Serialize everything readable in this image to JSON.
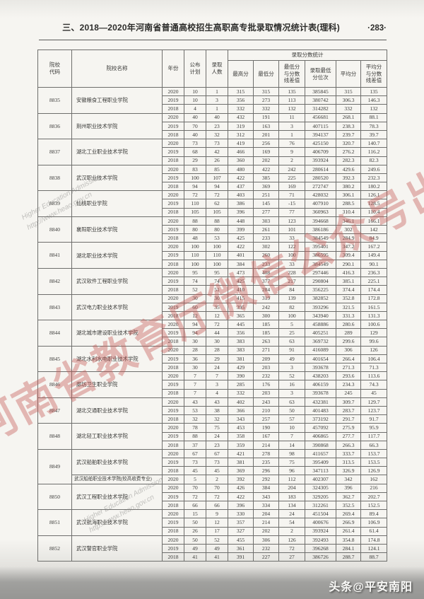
{
  "page": {
    "title": "三、2018—2020年河南省普通高校招生高职高专批录取情况统计表(理科)",
    "page_number": "·283·"
  },
  "colors": {
    "paper": "#f6f5f1",
    "table_border": "#474745",
    "red_watermark": "#c65856",
    "footer_band": "#969694"
  },
  "watermarks": {
    "red_text": "河南省教育厅微信公众号出品",
    "gray_line1": "Higher Education Admission",
    "gray_line2": "http://www.heao.gov.cn",
    "footer_credit": "头条@平安南阳"
  },
  "table": {
    "headers": {
      "code": "院校\n代码",
      "name": "院校名称",
      "year": "年份",
      "plan": "公布\n计划",
      "admitted": "录取\n人数",
      "stats_group": "录取分数统计",
      "max": "最高分",
      "min": "最低分",
      "min_diff": "最低分\n与分数\n线差值",
      "rank": "录取最低\n分位次",
      "avg": "平均分",
      "avg_diff": "平均分\n与分数\n线差值"
    },
    "groups": [
      {
        "code": "8835",
        "subgroups": [
          {
            "name": "安徽粮食工程职业学院",
            "rows": [
              [
                "2020",
                "10",
                "1",
                "315",
                "315",
                "135",
                "385845",
                "315",
                "135"
              ],
              [
                "2019",
                "10",
                "3",
                "356",
                "273",
                "113",
                "380742",
                "306.3",
                "146.3"
              ],
              [
                "2018",
                "4",
                "1",
                "332",
                "332",
                "132",
                "314282",
                "332",
                "132"
              ]
            ]
          }
        ]
      },
      {
        "code": "8836",
        "subgroups": [
          {
            "name": "荆州职业技术学院",
            "rows": [
              [
                "2020",
                "40",
                "40",
                "432",
                "191",
                "11",
                "456681",
                "268.1",
                "88.1"
              ],
              [
                "2019",
                "70",
                "23",
                "319",
                "163",
                "3",
                "407115",
                "238.3",
                "78.3"
              ],
              [
                "2018",
                "40",
                "32",
                "312",
                "201",
                "1",
                "394137",
                "239.7",
                "39.7"
              ]
            ]
          }
        ]
      },
      {
        "code": "8837",
        "subgroups": [
          {
            "name": "湖北工业职业技术学院",
            "rows": [
              [
                "2020",
                "73",
                "73",
                "419",
                "256",
                "76",
                "425150",
                "320.7",
                "140.7"
              ],
              [
                "2019",
                "68",
                "42",
                "466",
                "169",
                "9",
                "406709",
                "276.2",
                "116.2"
              ],
              [
                "2018",
                "29",
                "26",
                "360",
                "202",
                "2",
                "393924",
                "282.3",
                "82.3"
              ]
            ]
          }
        ]
      },
      {
        "code": "8838",
        "subgroups": [
          {
            "name": "武汉职业技术学院",
            "rows": [
              [
                "2020",
                "83",
                "85",
                "480",
                "422",
                "242",
                "280614",
                "429.6",
                "249.6"
              ],
              [
                "2019",
                "100",
                "107",
                "422",
                "385",
                "225",
                "280520",
                "392.3",
                "232.3"
              ],
              [
                "2018",
                "94",
                "94",
                "437",
                "369",
                "169",
                "272747",
                "380.2",
                "180.2"
              ]
            ]
          }
        ]
      },
      {
        "code": "8839",
        "subgroups": [
          {
            "name": "仙桃职业学院",
            "rows": [
              [
                "2020",
                "72",
                "72",
                "403",
                "251",
                "71",
                "428032",
                "306.1",
                "126.1"
              ],
              [
                "2019",
                "110",
                "62",
                "386",
                "145",
                "-15",
                "407910",
                "288.5",
                "128.5"
              ],
              [
                "2018",
                "105",
                "105",
                "396",
                "277",
                "77",
                "360963",
                "310.4",
                "110.4"
              ]
            ]
          }
        ]
      },
      {
        "code": "8840",
        "subgroups": [
          {
            "name": "襄阳职业技术学院",
            "rows": [
              [
                "2020",
                "88",
                "88",
                "448",
                "303",
                "123",
                "394668",
                "346.1",
                "166.1"
              ],
              [
                "2019",
                "80",
                "80",
                "399",
                "261",
                "101",
                "386186",
                "302",
                "142"
              ],
              [
                "2018",
                "48",
                "53",
                "425",
                "233",
                "33",
                "384549",
                "284.9",
                "84.9"
              ]
            ]
          }
        ]
      },
      {
        "code": "8841",
        "subgroups": [
          {
            "name": "湖北职业技术学院",
            "rows": [
              [
                "2020",
                "100",
                "100",
                "422",
                "302",
                "122",
                "395401",
                "347.2",
                "167.2"
              ],
              [
                "2019",
                "110",
                "110",
                "401",
                "260",
                "100",
                "386595",
                "309.4",
                "149.4"
              ],
              [
                "2018",
                "100",
                "100",
                "384",
                "233",
                "33",
                "384549",
                "290.1",
                "90.1"
              ]
            ]
          }
        ]
      },
      {
        "code": "8842",
        "subgroups": [
          {
            "name": "武汉软件工程职业学院",
            "rows": [
              [
                "2020",
                "95",
                "95",
                "473",
                "408",
                "228",
                "297446",
                "416.3",
                "236.3"
              ],
              [
                "2019",
                "74",
                "74",
                "425",
                "377",
                "217",
                "290804",
                "385.1",
                "225.1"
              ],
              [
                "2018",
                "52",
                "51",
                "410",
                "284",
                "84",
                "356225",
                "374.4",
                "174.4"
              ]
            ]
          }
        ]
      },
      {
        "code": "8843",
        "subgroups": [
          {
            "name": "武汉电力职业技术学院",
            "rows": [
              [
                "2020",
                "30",
                "30",
                "415",
                "319",
                "139",
                "382852",
                "352.8",
                "172.8"
              ],
              [
                "2019",
                "60",
                "35",
                "395",
                "242",
                "82",
                "393296",
                "321.5",
                "161.5"
              ],
              [
                "2018",
                "12",
                "12",
                "365",
                "300",
                "100",
                "343940",
                "331.3",
                "131.3"
              ]
            ]
          }
        ]
      },
      {
        "code": "8844",
        "subgroups": [
          {
            "name": "湖北城市建设职业技术学院",
            "rows": [
              [
                "2020",
                "94",
                "72",
                "445",
                "185",
                "5",
                "458886",
                "280.6",
                "100.6"
              ],
              [
                "2019",
                "94",
                "44",
                "356",
                "185",
                "25",
                "405251",
                "289",
                "129"
              ],
              [
                "2018",
                "30",
                "30",
                "383",
                "263",
                "63",
                "369732",
                "299.6",
                "99.6"
              ]
            ]
          }
        ]
      },
      {
        "code": "8845",
        "subgroups": [
          {
            "name": "湖北水利水电职业技术学院",
            "rows": [
              [
                "2020",
                "28",
                "28",
                "383",
                "271",
                "91",
                "416089",
                "306",
                "126"
              ],
              [
                "2019",
                "36",
                "29",
                "381",
                "209",
                "49",
                "401654",
                "266.4",
                "106.4"
              ],
              [
                "2018",
                "30",
                "24",
                "429",
                "203",
                "3",
                "393678",
                "271.3",
                "71.3"
              ]
            ]
          }
        ]
      },
      {
        "code": "8846",
        "subgroups": [
          {
            "name": "廊坊卫生职业学院",
            "rows": [
              [
                "2020",
                "7",
                "7",
                "390",
                "232",
                "52",
                "438203",
                "293.6",
                "113.6"
              ],
              [
                "2019",
                "7",
                "3",
                "285",
                "176",
                "16",
                "406159",
                "234.3",
                "74.3"
              ],
              [
                "2018",
                "7",
                "4",
                "332",
                "203",
                "3",
                "393678",
                "245",
                "45"
              ]
            ]
          }
        ]
      },
      {
        "code": "8847",
        "subgroups": [
          {
            "name": "湖北交通职业技术学院",
            "rows": [
              [
                "2020",
                "43",
                "43",
                "402",
                "243",
                "63",
                "432381",
                "309.7",
                "129.7"
              ],
              [
                "2019",
                "53",
                "38",
                "366",
                "210",
                "50",
                "401483",
                "283.7",
                "123.7"
              ],
              [
                "2018",
                "32",
                "32",
                "343",
                "257",
                "57",
                "373192",
                "291.7",
                "91.7"
              ]
            ]
          }
        ]
      },
      {
        "code": "8848",
        "subgroups": [
          {
            "name": "湖北轻工职业技术学院",
            "rows": [
              [
                "2020",
                "78",
                "75",
                "453",
                "190",
                "10",
                "457092",
                "275.9",
                "95.9"
              ],
              [
                "2019",
                "88",
                "24",
                "358",
                "167",
                "7",
                "406865",
                "277.7",
                "117.7"
              ],
              [
                "2018",
                "37",
                "23",
                "359",
                "214",
                "14",
                "390868",
                "266.3",
                "66.3"
              ]
            ]
          }
        ]
      },
      {
        "code": "8849",
        "subgroups": [
          {
            "name": "武汉船舶职业技术学院",
            "rows": [
              [
                "2020",
                "67",
                "67",
                "421",
                "278",
                "98",
                "411657",
                "333.7",
                "153.7"
              ],
              [
                "2019",
                "73",
                "73",
                "381",
                "235",
                "75",
                "395409",
                "313.5",
                "153.5"
              ],
              [
                "2018",
                "45",
                "45",
                "369",
                "296",
                "96",
                "347113",
                "326.9",
                "126.9"
              ]
            ]
          },
          {
            "name": "武汉船舶职业技术学院(较高收费专业)",
            "rows": [
              [
                "2020",
                "5",
                "2",
                "392",
                "292",
                "112",
                "402307",
                "342",
                "162"
              ]
            ]
          }
        ]
      },
      {
        "code": "8850",
        "subgroups": [
          {
            "name": "武汉工程职业技术学院",
            "rows": [
              [
                "2020",
                "70",
                "70",
                "426",
                "384",
                "204",
                "324305",
                "396",
                "216"
              ],
              [
                "2019",
                "72",
                "72",
                "422",
                "343",
                "183",
                "329205",
                "362.7",
                "202.7"
              ],
              [
                "2018",
                "66",
                "66",
                "396",
                "334",
                "134",
                "312261",
                "352.5",
                "152.5"
              ]
            ]
          }
        ]
      },
      {
        "code": "8851",
        "subgroups": [
          {
            "name": "武汉航海职业技术学院",
            "rows": [
              [
                "2020",
                "15",
                "9",
                "330",
                "204",
                "24",
                "451504",
                "269.4",
                "89.4"
              ],
              [
                "2019",
                "50",
                "12",
                "357",
                "214",
                "54",
                "400676",
                "266.9",
                "106.9"
              ],
              [
                "2018",
                "26",
                "17",
                "327",
                "202",
                "2",
                "393924",
                "261.4",
                "61.4"
              ]
            ]
          }
        ]
      },
      {
        "code": "8852",
        "subgroups": [
          {
            "name": "武汉警官职业学院",
            "rows": [
              [
                "2020",
                "50",
                "52",
                "455",
                "306",
                "126",
                "392493",
                "354.8",
                "174.8"
              ],
              [
                "2019",
                "49",
                "49",
                "361",
                "232",
                "72",
                "396268",
                "284.1",
                "124.1"
              ],
              [
                "2018",
                "41",
                "41",
                "391",
                "227",
                "27",
                "386726",
                "288.7",
                "88.7"
              ]
            ]
          }
        ]
      }
    ]
  }
}
